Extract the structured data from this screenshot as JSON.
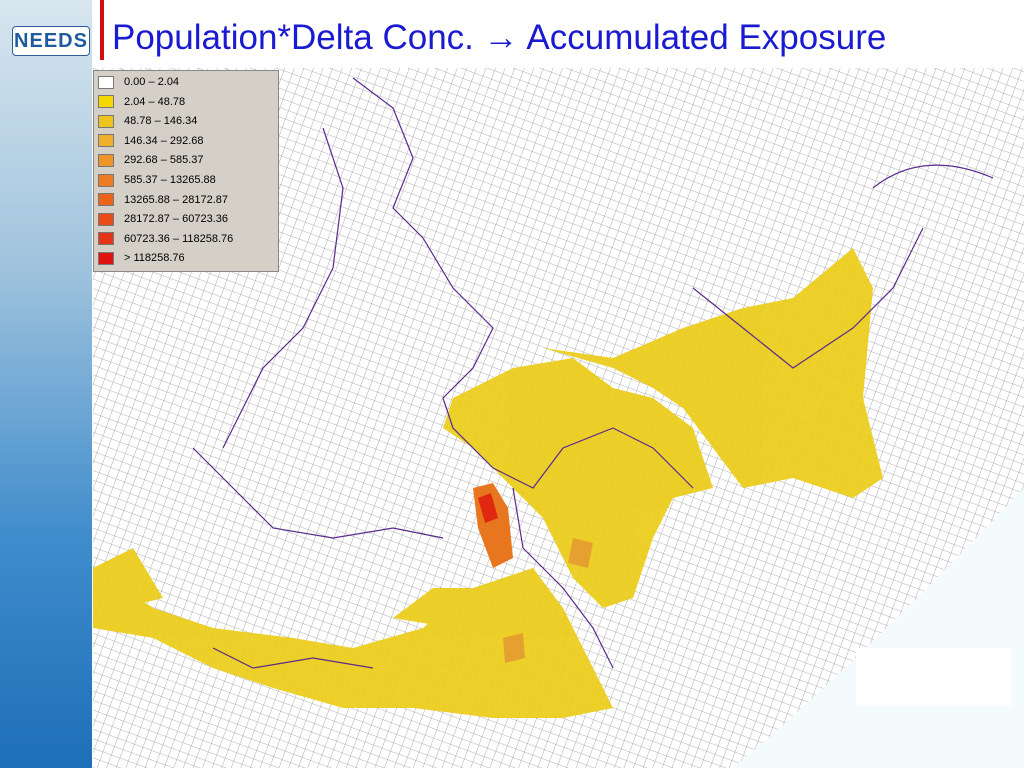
{
  "header": {
    "logo": "NEEDS",
    "title": "Population*Delta Conc. → Accumulated Exposure"
  },
  "legend": {
    "items": [
      {
        "label": "0.00 –  2.04",
        "color": "#ffffff"
      },
      {
        "label": "2.04 –  48.78",
        "color": "#f5d800"
      },
      {
        "label": "48.78 – 146.34",
        "color": "#eec41c"
      },
      {
        "label": "146.34 – 292.68",
        "color": "#efb02c"
      },
      {
        "label": "292.68 – 585.37",
        "color": "#ef9428"
      },
      {
        "label": "585.37 – 13265.88",
        "color": "#ee7c22"
      },
      {
        "label": "13265.88 – 28172.87",
        "color": "#ec641a"
      },
      {
        "label": "28172.87 – 60723.36",
        "color": "#e94c18"
      },
      {
        "label": "60723.36 – 118258.76",
        "color": "#e63418"
      },
      {
        "label": "> 118258.76",
        "color": "#e01212"
      }
    ]
  }
}
